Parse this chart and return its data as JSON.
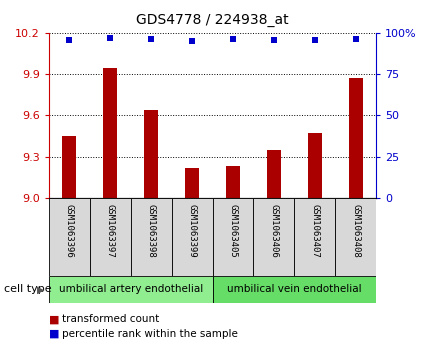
{
  "title": "GDS4778 / 224938_at",
  "samples": [
    "GSM1063396",
    "GSM1063397",
    "GSM1063398",
    "GSM1063399",
    "GSM1063405",
    "GSM1063406",
    "GSM1063407",
    "GSM1063408"
  ],
  "transformed_count": [
    9.45,
    9.94,
    9.64,
    9.22,
    9.23,
    9.35,
    9.47,
    9.87
  ],
  "percentile_rank": [
    95.5,
    97.0,
    96.0,
    95.0,
    96.0,
    95.5,
    95.5,
    96.0
  ],
  "ylim_left": [
    9.0,
    10.2
  ],
  "ylim_right": [
    0,
    100
  ],
  "yticks_left": [
    9.0,
    9.3,
    9.6,
    9.9,
    10.2
  ],
  "yticks_right": [
    0,
    25,
    50,
    75,
    100
  ],
  "bar_color": "#aa0000",
  "dot_color": "#0000cc",
  "cell_types": [
    {
      "label": "umbilical artery endothelial",
      "start": 0,
      "end": 4,
      "color": "#90ee90"
    },
    {
      "label": "umbilical vein endothelial",
      "start": 4,
      "end": 8,
      "color": "#66dd66"
    }
  ],
  "cell_type_label": "cell type",
  "legend_bar_label": "transformed count",
  "legend_dot_label": "percentile rank within the sample",
  "sample_bg_color": "#d8d8d8",
  "left_axis_color": "#cc0000",
  "right_axis_color": "#0000cc",
  "bar_width": 0.35
}
